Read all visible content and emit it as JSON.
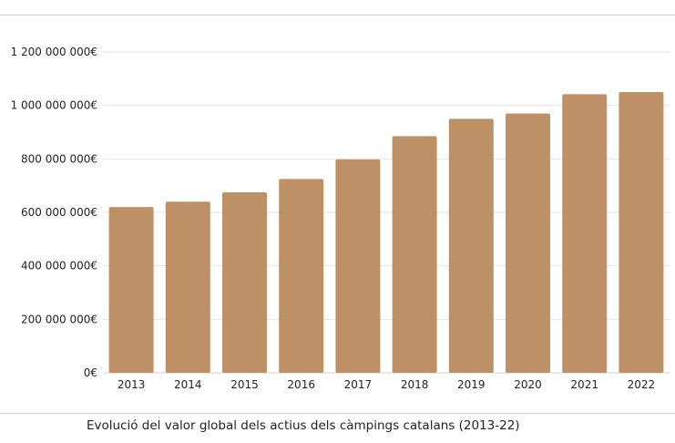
{
  "caption": "Evolució del valor global dels actius dels càmpings catalans (2013-22)",
  "chart_data": {
    "type": "bar",
    "categories": [
      "2013",
      "2014",
      "2015",
      "2016",
      "2017",
      "2018",
      "2019",
      "2020",
      "2021",
      "2022"
    ],
    "values": [
      620000000,
      640000000,
      675000000,
      725000000,
      798000000,
      885000000,
      950000000,
      970000000,
      1042000000,
      1050000000
    ],
    "ylim": [
      0,
      1200000000
    ],
    "yticks": [
      0,
      200000000,
      400000000,
      600000000,
      800000000,
      1000000000,
      1200000000
    ],
    "ytick_labels": [
      "0€",
      "200 000 000€",
      "400 000 000€",
      "600 000 000€",
      "800 000 000€",
      "1 000 000 000€",
      "1 200 000 000€"
    ],
    "grid": true,
    "bar_color": "#BD9066",
    "grid_color": "#e2e2e2",
    "legend": "none"
  }
}
